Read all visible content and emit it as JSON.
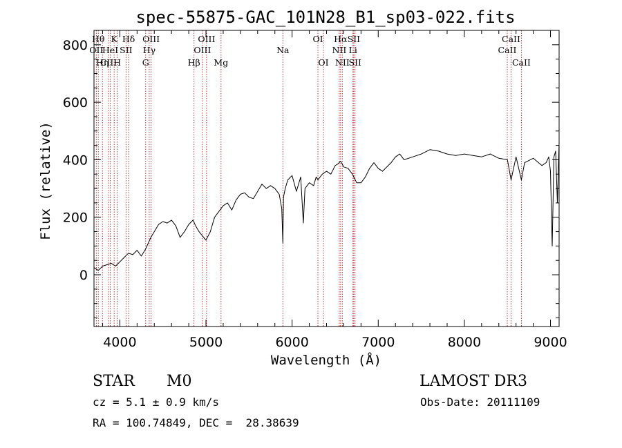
{
  "chart_data": {
    "type": "line",
    "title": "spec-55875-GAC_101N28_B1_sp03-022.fits",
    "xlabel": "Wavelength (Å)",
    "ylabel": "Flux (relative)",
    "xlim": [
      3700,
      9100
    ],
    "ylim": [
      -180,
      850
    ],
    "xticks": [
      4000,
      5000,
      6000,
      7000,
      8000,
      9000
    ],
    "yticks": [
      0,
      200,
      400,
      600,
      800
    ],
    "series": [
      {
        "name": "flux",
        "x": [
          3700,
          3750,
          3800,
          3850,
          3900,
          3950,
          4000,
          4050,
          4100,
          4150,
          4200,
          4250,
          4300,
          4330,
          4360,
          4400,
          4450,
          4500,
          4550,
          4600,
          4650,
          4700,
          4750,
          4800,
          4850,
          4880,
          4920,
          4960,
          5000,
          5050,
          5100,
          5150,
          5200,
          5250,
          5300,
          5350,
          5400,
          5450,
          5500,
          5550,
          5600,
          5650,
          5700,
          5750,
          5800,
          5850,
          5880,
          5893,
          5900,
          5920,
          5950,
          6000,
          6050,
          6100,
          6130,
          6150,
          6200,
          6250,
          6280,
          6300,
          6350,
          6400,
          6450,
          6500,
          6530,
          6563,
          6600,
          6650,
          6700,
          6750,
          6800,
          6850,
          6900,
          6950,
          7000,
          7050,
          7100,
          7150,
          7200,
          7250,
          7300,
          7400,
          7500,
          7600,
          7700,
          7800,
          7900,
          8000,
          8100,
          8200,
          8300,
          8400,
          8500,
          8542,
          8600,
          8662,
          8700,
          8800,
          8900,
          8950,
          8980,
          9000,
          9020,
          9040,
          9060,
          9080,
          9100
        ],
        "y": [
          25,
          15,
          30,
          35,
          40,
          30,
          45,
          60,
          75,
          70,
          85,
          65,
          90,
          110,
          130,
          150,
          175,
          185,
          180,
          190,
          170,
          130,
          150,
          175,
          190,
          170,
          150,
          135,
          120,
          150,
          200,
          220,
          240,
          250,
          225,
          260,
          280,
          285,
          270,
          265,
          290,
          315,
          300,
          310,
          300,
          280,
          230,
          110,
          270,
          300,
          330,
          345,
          290,
          340,
          180,
          300,
          320,
          310,
          340,
          330,
          350,
          360,
          350,
          380,
          385,
          395,
          375,
          370,
          350,
          320,
          320,
          340,
          370,
          390,
          370,
          360,
          375,
          390,
          410,
          420,
          400,
          410,
          420,
          435,
          430,
          420,
          415,
          420,
          415,
          410,
          420,
          405,
          400,
          330,
          410,
          330,
          390,
          405,
          380,
          390,
          410,
          360,
          100,
          410,
          430,
          250,
          460
        ]
      }
    ],
    "emission_lines": [
      {
        "wavelength": 3727,
        "label": "OII",
        "row": 2
      },
      {
        "wavelength": 3750,
        "label": "Hθ",
        "row": 1
      },
      {
        "wavelength": 3798,
        "label": "Hη",
        "row": 3
      },
      {
        "wavelength": 3869,
        "label": "CIII",
        "row": 3
      },
      {
        "wavelength": 3889,
        "label": "HeI",
        "row": 2
      },
      {
        "wavelength": 3934,
        "label": "K",
        "row": 1
      },
      {
        "wavelength": 3969,
        "label": "H",
        "row": 3
      },
      {
        "wavelength": 4072,
        "label": "SII",
        "row": 2
      },
      {
        "wavelength": 4102,
        "label": "Hδ",
        "row": 1
      },
      {
        "wavelength": 4300,
        "label": "G",
        "row": 3
      },
      {
        "wavelength": 4341,
        "label": "Hγ",
        "row": 2
      },
      {
        "wavelength": 4363,
        "label": "OIII",
        "row": 1
      },
      {
        "wavelength": 4861,
        "label": "Hβ",
        "row": 3
      },
      {
        "wavelength": 4959,
        "label": "OIII",
        "row": 2
      },
      {
        "wavelength": 5007,
        "label": "OIII",
        "row": 1
      },
      {
        "wavelength": 5175,
        "label": "Mg",
        "row": 3
      },
      {
        "wavelength": 5893,
        "label": "Na",
        "row": 2
      },
      {
        "wavelength": 6300,
        "label": "OI",
        "row": 1
      },
      {
        "wavelength": 6364,
        "label": "OI",
        "row": 3
      },
      {
        "wavelength": 6548,
        "label": "NII",
        "row": 2
      },
      {
        "wavelength": 6563,
        "label": "Hα",
        "row": 1
      },
      {
        "wavelength": 6583,
        "label": "NII",
        "row": 3
      },
      {
        "wavelength": 6707,
        "label": "Li",
        "row": 2
      },
      {
        "wavelength": 6716,
        "label": "SII",
        "row": 1
      },
      {
        "wavelength": 6731,
        "label": "SII",
        "row": 3
      },
      {
        "wavelength": 8498,
        "label": "CaII",
        "row": 2
      },
      {
        "wavelength": 8542,
        "label": "CaII",
        "row": 1
      },
      {
        "wavelength": 8662,
        "label": "CaII",
        "row": 3
      }
    ]
  },
  "info": {
    "class": "STAR",
    "subclass": "M0",
    "survey": "LAMOST DR3",
    "cz": "cz = 5.1 ± 0.9 km/s",
    "obs_date": "Obs-Date: 20111109",
    "coords": "RA = 100.74849, DEC =  28.38639"
  }
}
